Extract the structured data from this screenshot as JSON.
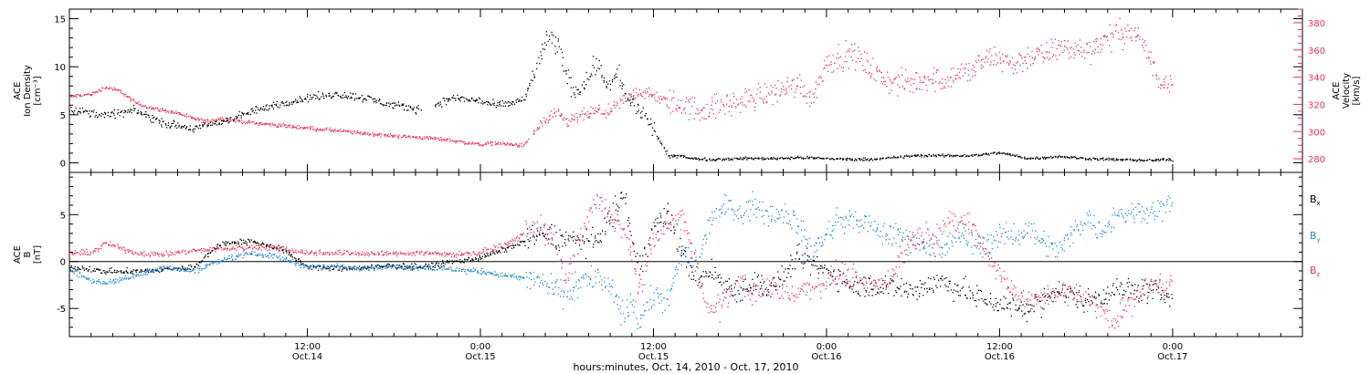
{
  "colors": {
    "density": "#000000",
    "velocity": "#e8325d",
    "bx": "#000000",
    "by": "#1f86e0",
    "bz": "#e8325d",
    "frame": "#000000"
  },
  "x_axis": {
    "title": "hours:minutes, Oct. 14, 2010 - Oct. 17, 2010",
    "range_hours": [
      -4.5,
      81
    ],
    "major_ticks": [
      {
        "t": 12,
        "time": "12:00",
        "date": "Oct.14"
      },
      {
        "t": 24,
        "time": "0:00",
        "date": "Oct.15"
      },
      {
        "t": 36,
        "time": "12:00",
        "date": "Oct.15"
      },
      {
        "t": 48,
        "time": "0:00",
        "date": "Oct.16"
      },
      {
        "t": 60,
        "time": "12:00",
        "date": "Oct.16"
      },
      {
        "t": 72,
        "time": "0:00",
        "date": "Oct.17"
      }
    ]
  },
  "chart_data": [
    {
      "type": "scatter",
      "ylabel_lines": [
        "ACE",
        "Ion Density",
        "[cm⁻³]"
      ],
      "y2label_lines": [
        "ACE",
        "Velocity",
        "[km/s]"
      ],
      "ylim": [
        -1,
        16
      ],
      "y2lim": [
        270,
        390
      ],
      "yticks": [
        0,
        5,
        10,
        15
      ],
      "y2ticks": [
        280,
        300,
        320,
        340,
        360,
        380
      ],
      "series": [
        {
          "key": "density",
          "axis": "left",
          "x": [
            -4.5,
            -2,
            0,
            2,
            4,
            6,
            8,
            10,
            12,
            14,
            16,
            18,
            20,
            21,
            22,
            24,
            25,
            26,
            27,
            28,
            28.5,
            29,
            29.5,
            30,
            30.5,
            31,
            32,
            32.5,
            33,
            33.5,
            34,
            35,
            36,
            37,
            38,
            38.5,
            40,
            42,
            44,
            46,
            48,
            50,
            52,
            54,
            56,
            58,
            60,
            62,
            64,
            66,
            68,
            70,
            72
          ],
          "y": [
            5.6,
            5.0,
            5.5,
            4.2,
            3.6,
            4.3,
            5.3,
            6.2,
            6.8,
            7.2,
            6.8,
            6.0,
            5.6,
            6.2,
            6.8,
            6.5,
            6.0,
            6.2,
            6.7,
            10.5,
            13.0,
            12.5,
            11.8,
            9.0,
            7.5,
            8.0,
            10.5,
            9.0,
            8.0,
            9.5,
            7.0,
            5.5,
            3.5,
            0.7,
            0.8,
            0.5,
            0.4,
            0.5,
            0.5,
            0.6,
            0.5,
            0.4,
            0.5,
            0.8,
            0.8,
            0.8,
            1.1,
            0.5,
            0.7,
            0.5,
            0.4,
            0.3,
            0.4
          ]
        },
        {
          "key": "velocity",
          "axis": "right",
          "x": [
            -4.5,
            -3,
            -2,
            -1,
            0,
            1,
            2,
            3,
            4,
            5,
            6,
            8,
            10,
            12,
            14,
            16,
            18,
            20,
            22,
            23,
            24,
            25,
            26,
            27,
            28,
            28.5,
            29,
            29.5,
            30,
            31,
            32,
            33,
            34,
            35,
            36,
            37,
            38,
            39,
            40,
            41,
            42,
            43,
            44,
            45,
            46,
            47,
            48,
            49,
            50,
            51,
            52,
            53,
            54,
            55,
            56,
            57,
            58,
            59,
            60,
            61,
            62,
            63,
            64,
            65,
            66,
            67,
            68,
            69,
            70,
            71,
            72
          ],
          "y": [
            326,
            328,
            333,
            330,
            322,
            318,
            316,
            314,
            310,
            308,
            310,
            307,
            305,
            303,
            301,
            299,
            297,
            296,
            294,
            292,
            291,
            292,
            291,
            290,
            304,
            308,
            313,
            311,
            307,
            312,
            315,
            315,
            325,
            330,
            326,
            322,
            320,
            316,
            318,
            320,
            322,
            326,
            328,
            332,
            335,
            325,
            352,
            356,
            356,
            347,
            338,
            336,
            336,
            340,
            338,
            342,
            345,
            353,
            355,
            349,
            356,
            356,
            362,
            361,
            360,
            366,
            372,
            374,
            364,
            338,
            339
          ]
        }
      ]
    },
    {
      "type": "scatter",
      "ylabel_lines": [
        "ACE",
        "B",
        "[nT]"
      ],
      "ylim": [
        -8,
        9.5
      ],
      "yticks": [
        -5,
        0,
        5
      ],
      "zero_line": true,
      "legend": {
        "placement": "right",
        "entries": [
          {
            "key": "bx",
            "base": "B",
            "sub": "x"
          },
          {
            "key": "by",
            "base": "B",
            "sub": "y"
          },
          {
            "key": "bz",
            "base": "B",
            "sub": "z"
          }
        ]
      },
      "series": [
        {
          "key": "bx",
          "name": "Bx",
          "x": [
            -4.5,
            -3,
            -2,
            0,
            2,
            4,
            6,
            8,
            10,
            12,
            14,
            16,
            18,
            20,
            22,
            24,
            26,
            28,
            30,
            32,
            33,
            34,
            34.5,
            35,
            36,
            37,
            38,
            39,
            40,
            41,
            42,
            43,
            44,
            45,
            46,
            48,
            50,
            52,
            54,
            56,
            58,
            60,
            62,
            64,
            66,
            68,
            70,
            72
          ],
          "y": [
            -0.5,
            -0.8,
            -1.0,
            -1.0,
            -0.8,
            -0.6,
            2.0,
            2.2,
            1.5,
            -0.5,
            -0.7,
            -0.6,
            -0.4,
            -0.5,
            0.0,
            0.5,
            1.5,
            3.0,
            2.5,
            2.0,
            5.0,
            7.0,
            2.0,
            -1.0,
            4.0,
            5.0,
            1.0,
            -2.0,
            -1.0,
            -2.5,
            -3.0,
            -2.0,
            -3.0,
            -1.5,
            0.5,
            -1.0,
            -2.5,
            -2.5,
            -3.0,
            -2.0,
            -3.5,
            -4.5,
            -5.0,
            -3.0,
            -4.0,
            -3.0,
            -3.0,
            -3.5
          ]
        },
        {
          "key": "by",
          "name": "By",
          "x": [
            -4.5,
            -3,
            -2,
            0,
            2,
            4,
            6,
            8,
            10,
            12,
            14,
            16,
            18,
            20,
            22,
            24,
            26,
            28,
            30,
            31,
            32,
            33,
            34,
            34.5,
            35,
            36,
            37,
            38,
            39,
            40,
            41,
            42,
            43,
            44,
            45,
            46,
            47,
            48,
            49,
            50,
            52,
            54,
            56,
            57,
            58,
            60,
            62,
            64,
            66,
            67,
            68,
            70,
            72
          ],
          "y": [
            -0.8,
            -2.0,
            -2.2,
            -1.5,
            -0.5,
            -1.0,
            0.2,
            1.0,
            0.5,
            -0.5,
            -0.5,
            -0.6,
            -0.5,
            -0.6,
            -0.8,
            -1.0,
            -1.5,
            -2.0,
            -3.5,
            -2.0,
            -1.5,
            -3.0,
            -6.0,
            -4.0,
            -6.5,
            -3.5,
            -4.0,
            1.0,
            0.0,
            5.0,
            6.0,
            5.5,
            6.0,
            5.0,
            5.5,
            4.0,
            1.0,
            3.0,
            4.5,
            4.5,
            3.0,
            2.5,
            1.0,
            3.0,
            2.0,
            2.5,
            3.5,
            1.0,
            5.0,
            3.0,
            5.0,
            5.5,
            6.0
          ]
        },
        {
          "key": "bz",
          "name": "Bz",
          "x": [
            -4.5,
            -3,
            -2,
            0,
            2,
            4,
            6,
            8,
            10,
            12,
            14,
            16,
            18,
            20,
            22,
            24,
            26,
            27,
            28,
            29,
            30,
            31,
            32,
            33,
            34,
            35,
            36,
            37,
            38,
            39,
            40,
            41,
            42,
            43,
            44,
            45,
            46,
            47,
            48,
            49,
            50,
            52,
            54,
            56,
            57,
            58,
            60,
            62,
            64,
            66,
            68,
            70,
            72
          ],
          "y": [
            1.0,
            1.0,
            2.0,
            1.0,
            0.8,
            1.2,
            1.4,
            1.6,
            1.5,
            1.0,
            1.0,
            0.9,
            0.9,
            1.0,
            0.8,
            1.0,
            2.0,
            3.0,
            4.0,
            2.0,
            -2.0,
            3.0,
            6.5,
            5.0,
            3.0,
            -3.0,
            2.5,
            4.0,
            5.0,
            -1.0,
            -5.5,
            -4.0,
            -2.0,
            -3.5,
            -2.5,
            -3.0,
            -3.5,
            -2.5,
            -2.0,
            -1.0,
            -2.0,
            -2.5,
            2.5,
            3.5,
            4.5,
            4.0,
            -1.5,
            -4.5,
            -3.0,
            -4.0,
            -6.0,
            -3.0,
            -2.0
          ]
        }
      ]
    }
  ]
}
